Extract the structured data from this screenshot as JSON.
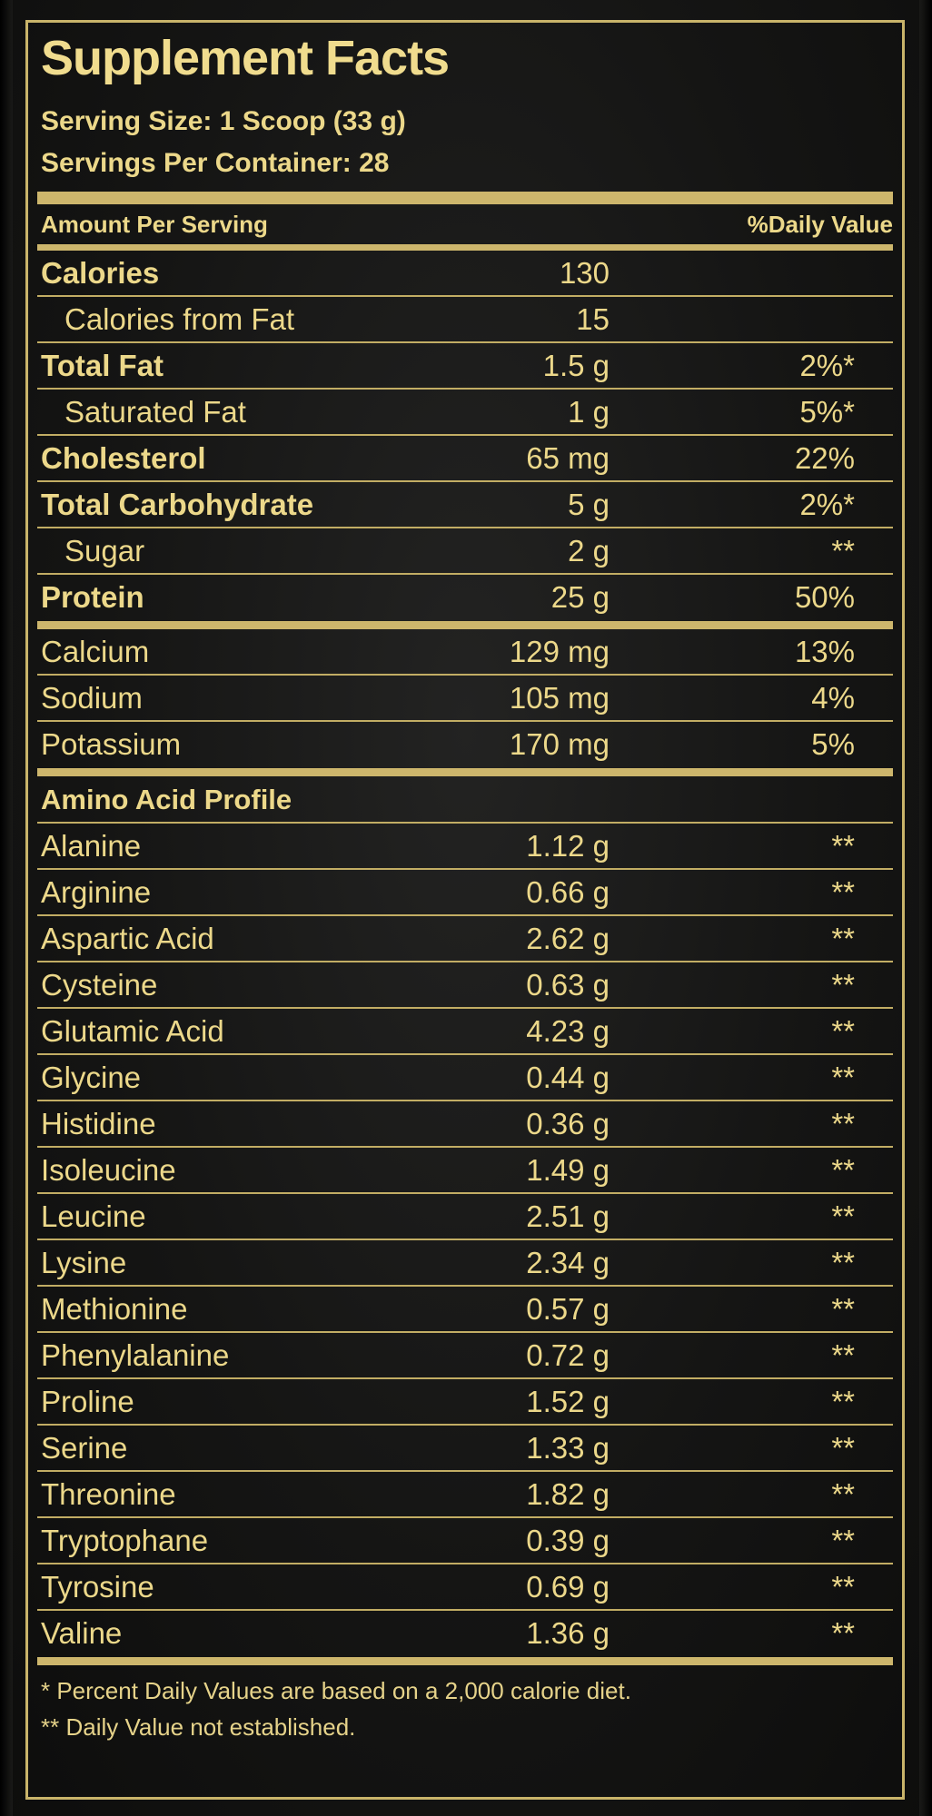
{
  "title": "Supplement Facts",
  "serving_size": "Serving Size: 1 Scoop (33 g)",
  "servings_per_container": "Servings Per Container: 28",
  "header": {
    "amount_per_serving": "Amount Per Serving",
    "daily_value": "%Daily Value"
  },
  "nutrients": [
    {
      "name": "Calories",
      "amount": "130",
      "dv": "",
      "bold": true,
      "indent": false
    },
    {
      "name": "Calories from Fat",
      "amount": "15",
      "dv": "",
      "bold": false,
      "indent": true
    },
    {
      "name": "Total Fat",
      "amount": "1.5 g",
      "dv": "2%*",
      "bold": true,
      "indent": false
    },
    {
      "name": "Saturated Fat",
      "amount": "1 g",
      "dv": "5%*",
      "bold": false,
      "indent": true
    },
    {
      "name": "Cholesterol",
      "amount": "65 mg",
      "dv": "22%",
      "bold": true,
      "indent": false
    },
    {
      "name": "Total Carbohydrate",
      "amount": "5 g",
      "dv": "2%*",
      "bold": true,
      "indent": false
    },
    {
      "name": "Sugar",
      "amount": "2 g",
      "dv": "**",
      "bold": false,
      "indent": true
    },
    {
      "name": "Protein",
      "amount": "25 g",
      "dv": "50%",
      "bold": true,
      "indent": false
    }
  ],
  "minerals": [
    {
      "name": "Calcium",
      "amount": "129 mg",
      "dv": "13%"
    },
    {
      "name": "Sodium",
      "amount": "105 mg",
      "dv": "4%"
    },
    {
      "name": "Potassium",
      "amount": "170 mg",
      "dv": "5%"
    }
  ],
  "amino_heading": "Amino Acid Profile",
  "amino_acids": [
    {
      "name": "Alanine",
      "amount": "1.12 g",
      "dv": "**"
    },
    {
      "name": "Arginine",
      "amount": "0.66 g",
      "dv": "**"
    },
    {
      "name": "Aspartic Acid",
      "amount": "2.62 g",
      "dv": "**"
    },
    {
      "name": "Cysteine",
      "amount": "0.63 g",
      "dv": "**"
    },
    {
      "name": "Glutamic Acid",
      "amount": "4.23 g",
      "dv": "**"
    },
    {
      "name": "Glycine",
      "amount": "0.44 g",
      "dv": "**"
    },
    {
      "name": "Histidine",
      "amount": "0.36 g",
      "dv": "**"
    },
    {
      "name": "Isoleucine",
      "amount": "1.49 g",
      "dv": "**"
    },
    {
      "name": "Leucine",
      "amount": "2.51 g",
      "dv": "**"
    },
    {
      "name": "Lysine",
      "amount": "2.34 g",
      "dv": "**"
    },
    {
      "name": "Methionine",
      "amount": "0.57 g",
      "dv": "**"
    },
    {
      "name": "Phenylalanine",
      "amount": "0.72 g",
      "dv": "**"
    },
    {
      "name": "Proline",
      "amount": "1.52 g",
      "dv": "**"
    },
    {
      "name": "Serine",
      "amount": "1.33 g",
      "dv": "**"
    },
    {
      "name": "Threonine",
      "amount": "1.82 g",
      "dv": "**"
    },
    {
      "name": "Tryptophane",
      "amount": "0.39 g",
      "dv": "**"
    },
    {
      "name": "Tyrosine",
      "amount": "0.69 g",
      "dv": "**"
    },
    {
      "name": "Valine",
      "amount": "1.36 g",
      "dv": "**"
    }
  ],
  "footnotes": [
    "* Percent Daily Values are based on a 2,000 calorie diet.",
    "** Daily Value not established."
  ],
  "colors": {
    "background": "#151514",
    "text_gold": "#ecd88a",
    "rule_gold": "#cdb66c"
  }
}
